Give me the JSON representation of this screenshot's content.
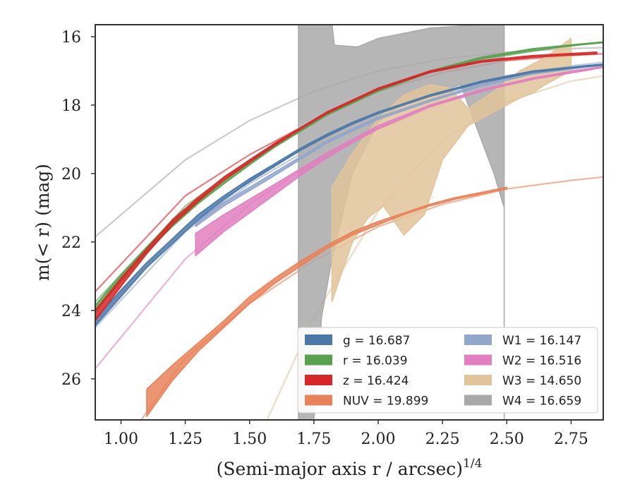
{
  "chart_data": {
    "type": "line",
    "title": "",
    "xlabel": {
      "main": "(Semi-major axis r / arcsec)",
      "exponent": "1/4"
    },
    "ylabel": "m(< r) (mag)",
    "xlim": [
      0.9,
      2.875
    ],
    "ylim": [
      27.2,
      15.65
    ],
    "y_inverted": true,
    "xticks": [
      "1.00",
      "1.25",
      "1.50",
      "1.75",
      "2.00",
      "2.25",
      "2.50",
      "2.75"
    ],
    "yticks": [
      "16",
      "18",
      "20",
      "22",
      "24",
      "26"
    ],
    "grid": false,
    "legend_position": "lower-right",
    "series": [
      {
        "name": "g = 16.687",
        "color": "#4c78a8",
        "upper": [
          [
            0.9,
            24.25
          ],
          [
            1.0,
            23.4
          ],
          [
            1.1,
            22.6
          ],
          [
            1.2,
            21.9
          ],
          [
            1.3,
            21.2
          ],
          [
            1.4,
            20.65
          ],
          [
            1.5,
            20.15
          ],
          [
            1.6,
            19.7
          ],
          [
            1.7,
            19.25
          ],
          [
            1.8,
            18.85
          ],
          [
            1.9,
            18.5
          ],
          [
            2.0,
            18.2
          ],
          [
            2.2,
            17.7
          ],
          [
            2.4,
            17.3
          ],
          [
            2.6,
            17.0
          ],
          [
            2.8,
            16.85
          ],
          [
            2.875,
            16.8
          ]
        ],
        "lower": [
          [
            0.9,
            24.45
          ],
          [
            1.0,
            23.6
          ],
          [
            1.1,
            22.75
          ],
          [
            1.2,
            22.05
          ],
          [
            1.3,
            21.35
          ],
          [
            1.4,
            20.75
          ],
          [
            1.5,
            20.25
          ],
          [
            1.6,
            19.78
          ],
          [
            1.7,
            19.32
          ],
          [
            1.8,
            18.92
          ],
          [
            1.9,
            18.56
          ],
          [
            2.0,
            18.25
          ],
          [
            2.2,
            17.75
          ],
          [
            2.4,
            17.35
          ],
          [
            2.6,
            17.05
          ],
          [
            2.8,
            16.88
          ],
          [
            2.875,
            16.83
          ]
        ],
        "model": [
          [
            1.29,
            21.45
          ],
          [
            1.5,
            20.2
          ],
          [
            1.75,
            19.05
          ],
          [
            2.0,
            18.2
          ],
          [
            2.25,
            17.6
          ],
          [
            2.5,
            17.15
          ],
          [
            2.75,
            16.85
          ]
        ]
      },
      {
        "name": "r = 16.039",
        "color": "#59a14f",
        "upper": [
          [
            0.9,
            23.85
          ],
          [
            1.0,
            22.95
          ],
          [
            1.1,
            22.15
          ],
          [
            1.2,
            21.4
          ],
          [
            1.3,
            20.75
          ],
          [
            1.4,
            20.2
          ],
          [
            1.5,
            19.65
          ],
          [
            1.6,
            19.15
          ],
          [
            1.7,
            18.7
          ],
          [
            1.8,
            18.25
          ],
          [
            1.9,
            17.9
          ],
          [
            2.0,
            17.55
          ],
          [
            2.2,
            17.0
          ],
          [
            2.4,
            16.6
          ],
          [
            2.6,
            16.35
          ],
          [
            2.8,
            16.2
          ],
          [
            2.875,
            16.15
          ]
        ],
        "lower": [
          [
            0.9,
            24.05
          ],
          [
            1.0,
            23.15
          ],
          [
            1.1,
            22.3
          ],
          [
            1.2,
            21.55
          ],
          [
            1.3,
            20.88
          ],
          [
            1.4,
            20.3
          ],
          [
            1.5,
            19.75
          ],
          [
            1.6,
            19.22
          ],
          [
            1.7,
            18.76
          ],
          [
            1.8,
            18.3
          ],
          [
            1.9,
            17.95
          ],
          [
            2.0,
            17.6
          ],
          [
            2.2,
            17.05
          ],
          [
            2.4,
            16.65
          ],
          [
            2.6,
            16.4
          ],
          [
            2.8,
            16.23
          ],
          [
            2.875,
            16.18
          ]
        ],
        "model": [
          [
            0.9,
            23.75
          ],
          [
            1.25,
            20.95
          ],
          [
            1.5,
            19.6
          ],
          [
            1.75,
            18.45
          ],
          [
            2.0,
            17.55
          ],
          [
            2.25,
            16.95
          ],
          [
            2.5,
            16.55
          ],
          [
            2.75,
            16.25
          ]
        ]
      },
      {
        "name": "z = 16.424",
        "color": "#d62728",
        "upper": [
          [
            0.9,
            24.0
          ],
          [
            1.0,
            23.05
          ],
          [
            1.1,
            22.2
          ],
          [
            1.2,
            21.35
          ],
          [
            1.3,
            20.7
          ],
          [
            1.4,
            20.1
          ],
          [
            1.5,
            19.6
          ],
          [
            1.6,
            19.1
          ],
          [
            1.7,
            18.65
          ],
          [
            1.8,
            18.2
          ],
          [
            1.9,
            17.85
          ],
          [
            2.0,
            17.5
          ],
          [
            2.2,
            17.0
          ],
          [
            2.4,
            16.7
          ],
          [
            2.6,
            16.55
          ],
          [
            2.85,
            16.45
          ]
        ],
        "lower": [
          [
            0.9,
            24.3
          ],
          [
            1.0,
            23.3
          ],
          [
            1.1,
            22.35
          ],
          [
            1.2,
            21.5
          ],
          [
            1.3,
            20.82
          ],
          [
            1.4,
            20.2
          ],
          [
            1.5,
            19.68
          ],
          [
            1.6,
            19.17
          ],
          [
            1.7,
            18.7
          ],
          [
            1.8,
            18.25
          ],
          [
            1.9,
            17.9
          ],
          [
            2.0,
            17.55
          ],
          [
            2.2,
            17.05
          ],
          [
            2.4,
            16.75
          ],
          [
            2.6,
            16.6
          ],
          [
            2.85,
            16.5
          ]
        ],
        "model": [
          [
            0.9,
            23.45
          ],
          [
            1.25,
            20.65
          ],
          [
            1.5,
            19.45
          ],
          [
            1.75,
            18.45
          ],
          [
            2.0,
            17.6
          ],
          [
            2.25,
            17.05
          ],
          [
            2.5,
            16.7
          ],
          [
            2.75,
            16.55
          ],
          [
            2.875,
            16.5
          ]
        ]
      },
      {
        "name": "NUV = 19.899",
        "color": "#e8825a",
        "upper": [
          [
            1.1,
            26.3
          ],
          [
            1.2,
            25.6
          ],
          [
            1.3,
            24.95
          ],
          [
            1.4,
            24.3
          ],
          [
            1.5,
            23.6
          ],
          [
            1.6,
            23.05
          ],
          [
            1.7,
            22.55
          ],
          [
            1.8,
            22.1
          ],
          [
            1.9,
            21.7
          ],
          [
            2.0,
            21.4
          ],
          [
            2.1,
            21.15
          ],
          [
            2.2,
            20.9
          ],
          [
            2.3,
            20.7
          ],
          [
            2.4,
            20.55
          ],
          [
            2.5,
            20.4
          ]
        ],
        "lower": [
          [
            1.1,
            27.1
          ],
          [
            1.2,
            26.05
          ],
          [
            1.3,
            25.2
          ],
          [
            1.4,
            24.5
          ],
          [
            1.5,
            23.8
          ],
          [
            1.6,
            23.2
          ],
          [
            1.7,
            22.7
          ],
          [
            1.8,
            22.2
          ],
          [
            1.9,
            21.8
          ],
          [
            2.0,
            21.5
          ],
          [
            2.1,
            21.2
          ],
          [
            2.2,
            20.95
          ],
          [
            2.3,
            20.75
          ],
          [
            2.4,
            20.6
          ],
          [
            2.5,
            20.45
          ]
        ],
        "model": [
          [
            1.05,
            27.5
          ],
          [
            1.25,
            25.4
          ],
          [
            1.5,
            23.8
          ],
          [
            1.75,
            22.55
          ],
          [
            2.0,
            21.55
          ],
          [
            2.25,
            20.9
          ],
          [
            2.5,
            20.45
          ],
          [
            2.75,
            20.2
          ],
          [
            2.875,
            20.1
          ]
        ]
      },
      {
        "name": "W1 = 16.147",
        "color": "#93a6cc",
        "upper": [
          [
            1.29,
            21.4
          ],
          [
            1.4,
            20.85
          ],
          [
            1.5,
            20.4
          ],
          [
            1.6,
            19.95
          ],
          [
            1.7,
            19.5
          ],
          [
            1.8,
            19.05
          ],
          [
            1.9,
            18.7
          ],
          [
            2.0,
            18.35
          ],
          [
            2.2,
            17.85
          ],
          [
            2.4,
            17.4
          ],
          [
            2.6,
            17.05
          ],
          [
            2.8,
            16.85
          ],
          [
            2.875,
            16.8
          ]
        ],
        "lower": [
          [
            1.29,
            21.55
          ],
          [
            1.4,
            20.95
          ],
          [
            1.5,
            20.5
          ],
          [
            1.6,
            20.05
          ],
          [
            1.7,
            19.58
          ],
          [
            1.8,
            19.12
          ],
          [
            1.9,
            18.76
          ],
          [
            2.0,
            18.42
          ],
          [
            2.2,
            17.9
          ],
          [
            2.4,
            17.45
          ],
          [
            2.6,
            17.1
          ],
          [
            2.8,
            16.9
          ],
          [
            2.875,
            16.85
          ]
        ],
        "model": [
          [
            0.9,
            24.5
          ],
          [
            1.25,
            21.7
          ],
          [
            1.5,
            20.3
          ],
          [
            1.75,
            19.2
          ],
          [
            2.0,
            18.35
          ],
          [
            2.25,
            17.7
          ],
          [
            2.5,
            17.2
          ],
          [
            2.75,
            16.85
          ],
          [
            2.875,
            16.75
          ]
        ]
      },
      {
        "name": "W2 = 16.516",
        "color": "#e17fc0",
        "upper": [
          [
            1.29,
            21.75
          ],
          [
            1.4,
            21.2
          ],
          [
            1.5,
            20.75
          ],
          [
            1.6,
            20.3
          ],
          [
            1.7,
            19.85
          ],
          [
            1.8,
            19.4
          ],
          [
            1.9,
            19.0
          ],
          [
            2.0,
            18.6
          ],
          [
            2.2,
            18.0
          ],
          [
            2.4,
            17.55
          ],
          [
            2.6,
            17.2
          ],
          [
            2.8,
            16.95
          ],
          [
            2.875,
            16.88
          ]
        ],
        "lower": [
          [
            1.29,
            22.4
          ],
          [
            1.4,
            21.7
          ],
          [
            1.5,
            21.15
          ],
          [
            1.6,
            20.6
          ],
          [
            1.7,
            20.05
          ],
          [
            1.8,
            19.55
          ],
          [
            1.9,
            19.1
          ],
          [
            2.0,
            18.7
          ],
          [
            2.2,
            18.05
          ],
          [
            2.4,
            17.6
          ],
          [
            2.6,
            17.25
          ],
          [
            2.8,
            17.0
          ],
          [
            2.875,
            16.9
          ]
        ],
        "model": [
          [
            0.9,
            25.7
          ],
          [
            1.25,
            22.5
          ],
          [
            1.5,
            20.9
          ],
          [
            1.75,
            19.65
          ],
          [
            2.0,
            18.7
          ],
          [
            2.25,
            17.95
          ],
          [
            2.5,
            17.4
          ],
          [
            2.75,
            17.0
          ],
          [
            2.875,
            16.9
          ]
        ]
      },
      {
        "name": "W3 = 14.650",
        "color": "#e2c49a",
        "upper": [
          [
            1.82,
            20.4
          ],
          [
            1.9,
            19.4
          ],
          [
            2.0,
            18.4
          ],
          [
            2.1,
            17.7
          ],
          [
            2.2,
            17.4
          ],
          [
            2.28,
            17.5
          ],
          [
            2.35,
            18.1
          ],
          [
            2.45,
            17.6
          ],
          [
            2.55,
            17.0
          ],
          [
            2.65,
            16.6
          ],
          [
            2.75,
            16.05
          ]
        ],
        "lower": [
          [
            1.82,
            23.75
          ],
          [
            1.9,
            22.0
          ],
          [
            1.96,
            21.3
          ],
          [
            2.02,
            20.95
          ],
          [
            2.1,
            21.8
          ],
          [
            2.18,
            21.2
          ],
          [
            2.25,
            19.6
          ],
          [
            2.35,
            18.6
          ],
          [
            2.45,
            18.2
          ],
          [
            2.55,
            17.8
          ],
          [
            2.6,
            17.65
          ],
          [
            2.65,
            17.4
          ],
          [
            2.75,
            17.0
          ]
        ],
        "model": [
          [
            1.55,
            27.5
          ],
          [
            1.75,
            24.2
          ],
          [
            2.0,
            21.1
          ],
          [
            2.25,
            19.0
          ],
          [
            2.5,
            17.9
          ],
          [
            2.75,
            17.3
          ],
          [
            2.875,
            17.15
          ]
        ]
      },
      {
        "name": "W4 = 16.659",
        "color": "#a9a9a9",
        "upper": [
          [
            1.69,
            15.6
          ],
          [
            1.82,
            15.6
          ],
          [
            1.83,
            16.25
          ],
          [
            1.92,
            16.3
          ],
          [
            2.0,
            16.05
          ],
          [
            2.2,
            15.75
          ],
          [
            2.49,
            15.6
          ]
        ],
        "lower": [
          [
            1.69,
            27.2
          ],
          [
            1.75,
            27.2
          ],
          [
            1.78,
            24.2
          ],
          [
            1.82,
            22.5
          ],
          [
            1.9,
            20.0
          ],
          [
            2.0,
            18.5
          ],
          [
            2.1,
            17.9
          ],
          [
            2.2,
            17.7
          ],
          [
            2.32,
            17.4
          ],
          [
            2.4,
            19.0
          ],
          [
            2.45,
            20.0
          ],
          [
            2.49,
            21.0
          ],
          [
            2.49,
            27.2
          ]
        ],
        "model": [
          [
            0.9,
            21.85
          ],
          [
            1.25,
            19.6
          ],
          [
            1.5,
            18.45
          ],
          [
            1.75,
            17.6
          ],
          [
            2.0,
            17.0
          ],
          [
            2.25,
            16.65
          ],
          [
            2.5,
            16.45
          ],
          [
            2.75,
            16.35
          ],
          [
            2.875,
            16.32
          ]
        ]
      }
    ]
  }
}
